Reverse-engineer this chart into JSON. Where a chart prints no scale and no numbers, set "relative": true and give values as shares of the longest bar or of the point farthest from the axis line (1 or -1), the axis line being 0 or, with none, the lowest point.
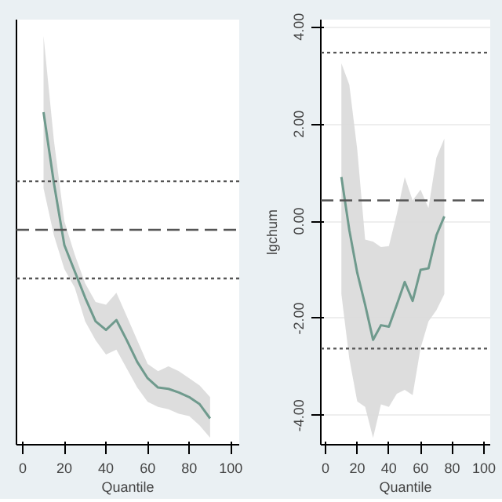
{
  "chart_data": [
    {
      "type": "line",
      "relative": true,
      "xlabel": "Quantile",
      "xlim": [
        -3,
        104
      ],
      "xticks": [
        0,
        20,
        40,
        60,
        80,
        100
      ],
      "line_style": "solid",
      "marker": "none",
      "x": [
        10,
        15,
        20,
        25,
        30,
        35,
        40,
        45,
        50,
        55,
        60,
        65,
        70,
        75,
        80,
        85,
        90
      ],
      "series": [
        {
          "color": "#6f9a8d",
          "values": [
            1.0,
            0.786,
            0.6,
            0.521,
            0.442,
            0.371,
            0.345,
            0.375,
            0.314,
            0.249,
            0.2,
            0.172,
            0.168,
            0.157,
            0.143,
            0.122,
            0.079
          ],
          "upper": [
            1.229,
            0.914,
            0.672,
            0.571,
            0.485,
            0.429,
            0.421,
            0.457,
            0.386,
            0.314,
            0.243,
            0.221,
            0.236,
            0.221,
            0.2,
            0.178,
            0.143
          ],
          "lower": [
            0.771,
            0.629,
            0.528,
            0.472,
            0.371,
            0.314,
            0.271,
            0.286,
            0.229,
            0.172,
            0.129,
            0.114,
            0.107,
            0.093,
            0.086,
            0.058,
            0.021
          ]
        }
      ],
      "ref_lines": [
        {
          "axis": "y",
          "value": 0.792,
          "line_style": "dotted",
          "color": "#555555"
        },
        {
          "axis": "y",
          "value": 0.646,
          "line_style": "dashed",
          "color": "#555555"
        },
        {
          "axis": "y",
          "value": 0.5,
          "line_style": "dotted",
          "color": "#555555"
        }
      ]
    },
    {
      "type": "line",
      "xlabel": "Quantile",
      "ylabel": "lgchum",
      "xlim": [
        -3,
        104
      ],
      "xticks": [
        0,
        20,
        40,
        60,
        80,
        100
      ],
      "ylim": [
        -4.6,
        4.15
      ],
      "yticks": [
        {
          "value": -4,
          "label": "-4.00"
        },
        {
          "value": -2,
          "label": "-2.00"
        },
        {
          "value": 0,
          "label": "0.00"
        },
        {
          "value": 2,
          "label": "2.00"
        },
        {
          "value": 4,
          "label": "4.00"
        }
      ],
      "grid": "y",
      "line_style": "solid",
      "marker": "none",
      "x": [
        10,
        15,
        20,
        25,
        30,
        35,
        40,
        45,
        50,
        55,
        60,
        65,
        70,
        75
      ],
      "series": [
        {
          "color": "#6f9a8d",
          "values": [
            0.91,
            -0.18,
            -1.06,
            -1.72,
            -2.44,
            -2.14,
            -2.17,
            -1.72,
            -1.25,
            -1.64,
            -1.0,
            -0.97,
            -0.29,
            0.1
          ],
          "upper": [
            3.25,
            2.81,
            1.48,
            -0.38,
            -0.42,
            -0.53,
            -0.51,
            0.15,
            0.91,
            0.43,
            0.65,
            0.27,
            1.31,
            1.7
          ],
          "lower": [
            -1.5,
            -2.83,
            -3.71,
            -3.82,
            -4.46,
            -3.77,
            -3.82,
            -3.55,
            -3.47,
            -3.58,
            -2.61,
            -2.06,
            -1.83,
            -1.5
          ]
        }
      ],
      "ref_lines": [
        {
          "axis": "y",
          "value": 3.47,
          "line_style": "dotted",
          "color": "#555555"
        },
        {
          "axis": "y",
          "value": 0.43,
          "line_style": "dashed",
          "color": "#555555"
        },
        {
          "axis": "y",
          "value": -2.62,
          "line_style": "dotted",
          "color": "#555555"
        }
      ]
    }
  ]
}
